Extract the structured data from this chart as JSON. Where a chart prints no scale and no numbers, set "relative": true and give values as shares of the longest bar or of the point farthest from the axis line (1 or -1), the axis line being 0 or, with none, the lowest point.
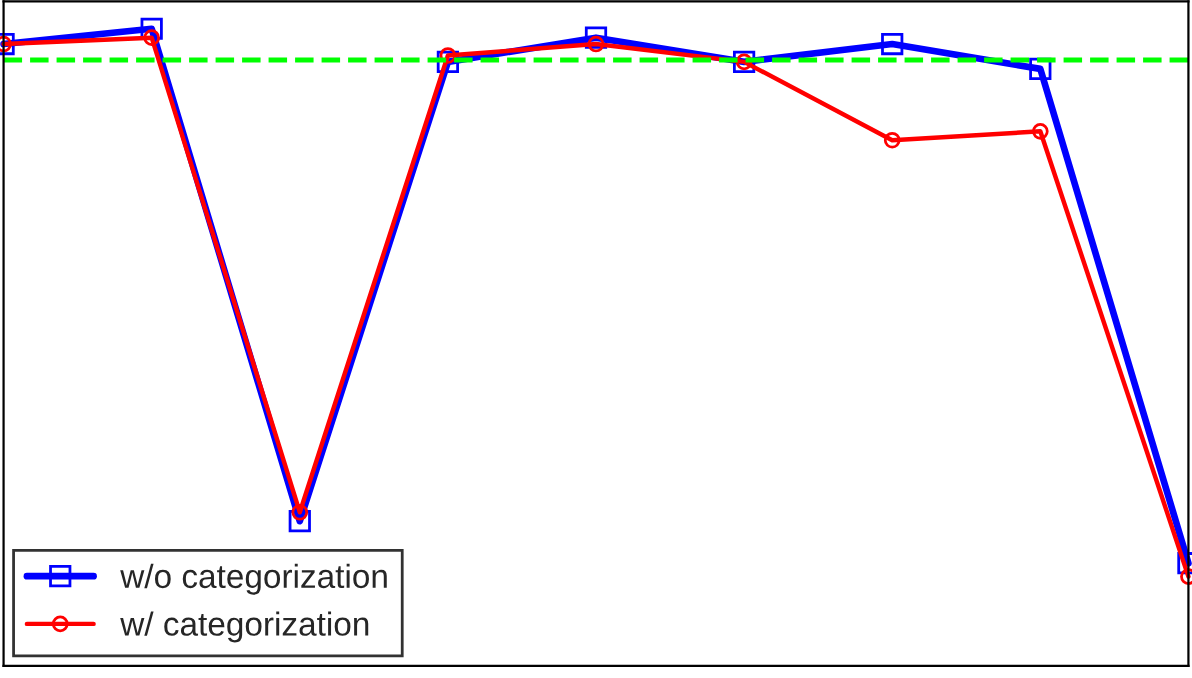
{
  "chart_data": {
    "type": "line",
    "relative": true,
    "categories": [
      null,
      null,
      null,
      null,
      null,
      null,
      null,
      null,
      null
    ],
    "series": [
      {
        "name": "w/o categorization",
        "color": "#0000ff",
        "marker": "square",
        "values": [
          0.976,
          1.0,
          0.227,
          0.948,
          0.986,
          0.948,
          0.976,
          0.937,
          0.161
        ]
      },
      {
        "name": "w/ categorization",
        "color": "#ff0000",
        "marker": "circle",
        "values": [
          0.976,
          0.986,
          0.241,
          0.958,
          0.976,
          0.948,
          0.825,
          0.839,
          0.14
        ]
      }
    ],
    "ref_lines": [
      {
        "axis": "y",
        "value": 0.951,
        "color": "#00ff00",
        "line_style": "dashed"
      }
    ],
    "legend": "bottom left",
    "line_style": "solid",
    "grid": false
  }
}
